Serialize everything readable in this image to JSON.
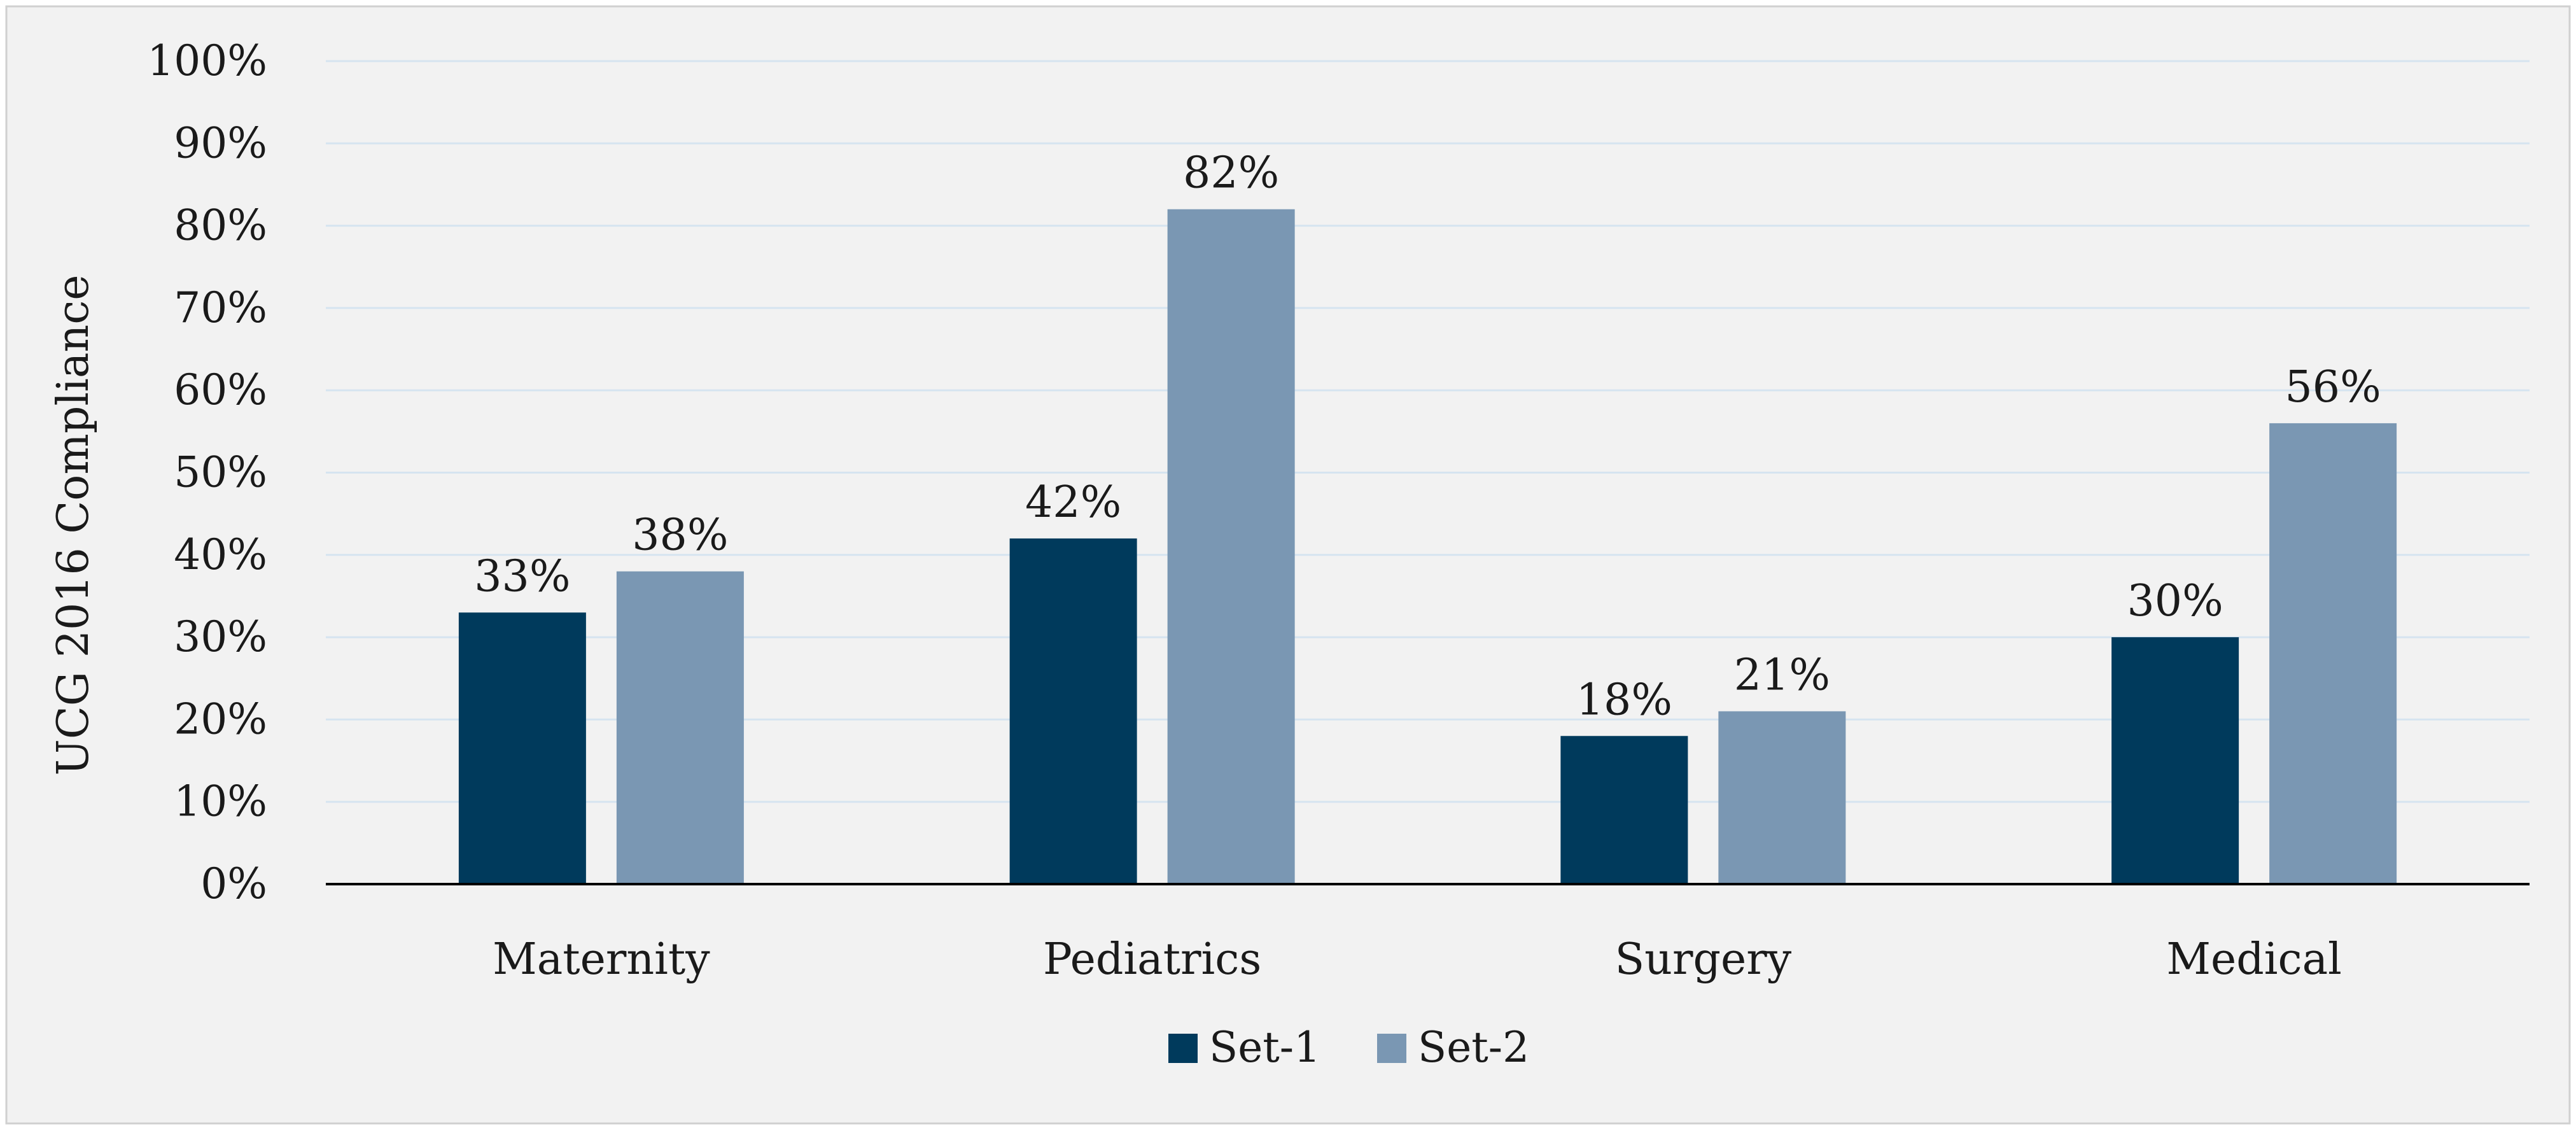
{
  "chart_data": {
    "type": "bar",
    "title": "",
    "xlabel": "",
    "ylabel": "UCG 2016 Compliance",
    "ylim": [
      0,
      100
    ],
    "y_ticks": [
      "0%",
      "10%",
      "20%",
      "30%",
      "40%",
      "50%",
      "60%",
      "70%",
      "80%",
      "90%",
      "100%"
    ],
    "grid": true,
    "legend_position": "bottom",
    "categories": [
      "Maternity",
      "Pediatrics",
      "Surgery",
      "Medical"
    ],
    "series": [
      {
        "name": "Set-1",
        "color": "#003a5c",
        "values": [
          33,
          42,
          18,
          30
        ],
        "labels": [
          "33%",
          "42%",
          "18%",
          "30%"
        ]
      },
      {
        "name": "Set-2",
        "color": "#7a97b3",
        "values": [
          38,
          82,
          21,
          56
        ],
        "labels": [
          "38%",
          "82%",
          "21%",
          "56%"
        ]
      }
    ],
    "colors": {
      "background": "#f2f2f2",
      "gridline": "#d6e4f0",
      "axis": "#000000",
      "border": "#d0d0d0"
    }
  }
}
